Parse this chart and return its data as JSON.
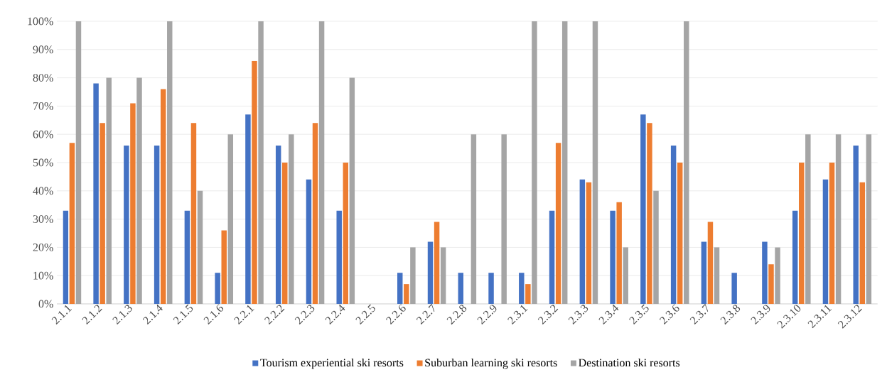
{
  "chart_data": {
    "type": "bar",
    "categories": [
      "2.1.1",
      "2.1.2",
      "2.1.3",
      "2.1.4",
      "2.1.5",
      "2.1.6",
      "2.2.1",
      "2.2.2",
      "2.2.3",
      "2.2.4",
      "2.2.5",
      "2.2.6",
      "2.2.7",
      "2.2.8",
      "2.2.9",
      "2.3.1",
      "2.3.2",
      "2.3.3",
      "2.3.4",
      "2.3.5",
      "2.3.6",
      "2.3.7",
      "2.3.8",
      "2.3.9",
      "2.3.10",
      "2.3.11",
      "2.3.12"
    ],
    "series": [
      {
        "name": "Tourism experiential ski resorts",
        "color": "#4472c4",
        "values": [
          33,
          78,
          56,
          56,
          33,
          11,
          67,
          56,
          44,
          33,
          0,
          11,
          22,
          11,
          11,
          11,
          33,
          44,
          33,
          67,
          56,
          22,
          11,
          22,
          33,
          44,
          56
        ]
      },
      {
        "name": "Suburban learning ski resorts",
        "color": "#ed7d31",
        "values": [
          57,
          64,
          71,
          76,
          64,
          26,
          86,
          50,
          64,
          50,
          0,
          7,
          29,
          0,
          0,
          7,
          57,
          43,
          36,
          64,
          50,
          29,
          0,
          14,
          50,
          50,
          43
        ]
      },
      {
        "name": "Destination ski resorts",
        "color": "#a5a5a5",
        "values": [
          100,
          80,
          80,
          100,
          40,
          60,
          100,
          60,
          100,
          80,
          0,
          20,
          20,
          60,
          60,
          100,
          100,
          100,
          20,
          40,
          100,
          20,
          0,
          20,
          60,
          60,
          60
        ]
      }
    ],
    "ylim": [
      0,
      100
    ],
    "yticks": [
      {
        "value": 0,
        "label": "0%"
      },
      {
        "value": 10,
        "label": "10%"
      },
      {
        "value": 20,
        "label": "20%"
      },
      {
        "value": 30,
        "label": "30%"
      },
      {
        "value": 40,
        "label": "40%"
      },
      {
        "value": 50,
        "label": "50%"
      },
      {
        "value": 60,
        "label": "60%"
      },
      {
        "value": 70,
        "label": "70%"
      },
      {
        "value": 80,
        "label": "80%"
      },
      {
        "value": 90,
        "label": "90%"
      },
      {
        "value": 100,
        "label": "100%"
      }
    ],
    "grid": "y",
    "legend": "bottom"
  }
}
